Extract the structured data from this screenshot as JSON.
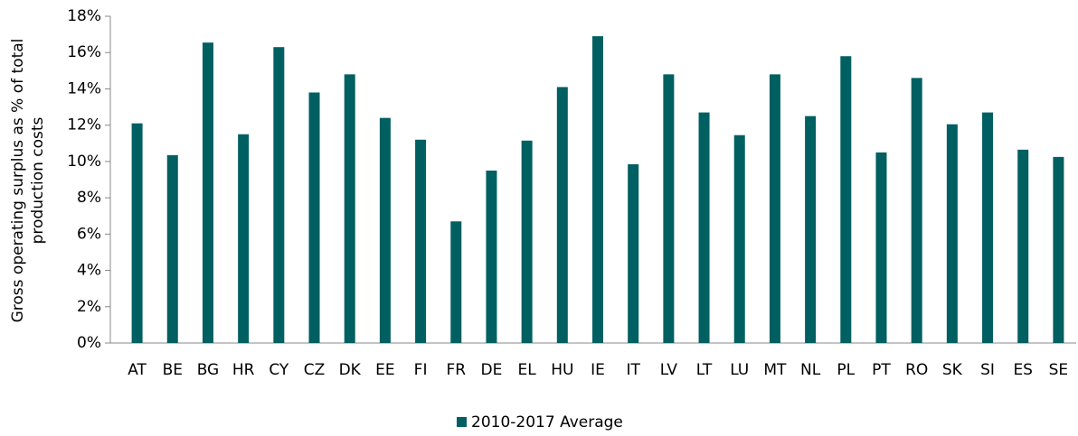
{
  "chart_data": {
    "type": "bar",
    "ylabel": [
      "Gross operating surplus as % of total",
      "production costs"
    ],
    "categories": [
      "AT",
      "BE",
      "BG",
      "HR",
      "CY",
      "CZ",
      "DK",
      "EE",
      "FI",
      "FR",
      "DE",
      "EL",
      "HU",
      "IE",
      "IT",
      "LV",
      "LT",
      "LU",
      "MT",
      "NL",
      "PL",
      "PT",
      "RO",
      "SK",
      "SI",
      "ES",
      "SE"
    ],
    "series": [
      {
        "name": "2010-2017 Average",
        "color": "#005f61",
        "values": [
          12.1,
          10.35,
          16.55,
          11.5,
          16.3,
          13.8,
          14.8,
          12.4,
          11.2,
          6.7,
          9.5,
          11.15,
          14.1,
          16.9,
          9.85,
          14.8,
          12.7,
          11.45,
          14.8,
          12.5,
          15.8,
          10.5,
          14.6,
          12.05,
          12.7,
          10.65,
          10.25
        ]
      }
    ],
    "ylim": [
      0,
      18
    ],
    "yticks": [
      {
        "value": 0,
        "label": "0%"
      },
      {
        "value": 2,
        "label": "2%"
      },
      {
        "value": 4,
        "label": "4%"
      },
      {
        "value": 6,
        "label": "6%"
      },
      {
        "value": 8,
        "label": "8%"
      },
      {
        "value": 10,
        "label": "10%"
      },
      {
        "value": 12,
        "label": "12%"
      },
      {
        "value": 14,
        "label": "14%"
      },
      {
        "value": 16,
        "label": "16%"
      },
      {
        "value": 18,
        "label": "18%"
      }
    ],
    "grid": false,
    "legend": "bottom"
  }
}
